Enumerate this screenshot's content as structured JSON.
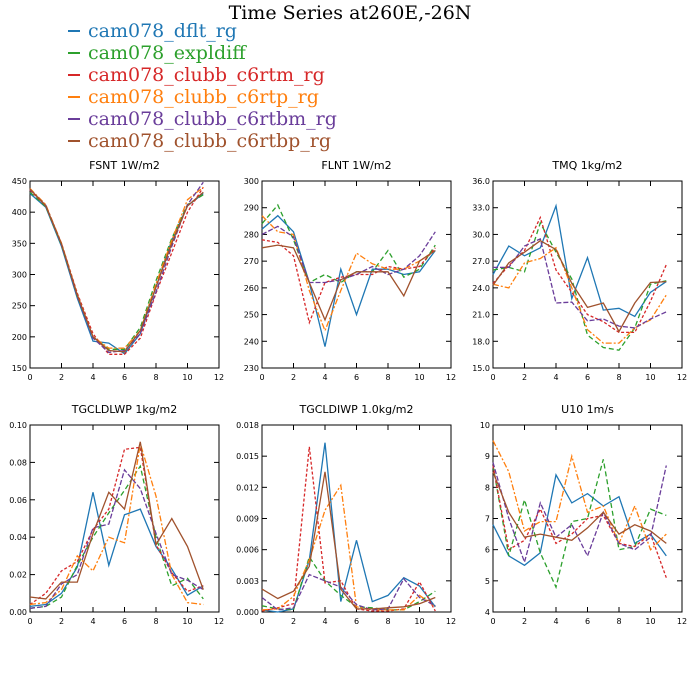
{
  "page": {
    "title": "Time Series at260E,-26N"
  },
  "legend": [
    {
      "label": "cam078_dflt_rg",
      "color": "#1f77b4"
    },
    {
      "label": "cam078_expldiff",
      "color": "#2ca02c"
    },
    {
      "label": "cam078_clubb_c6rtm_rg",
      "color": "#d62728"
    },
    {
      "label": "cam078_clubb_c6rtp_rg",
      "color": "#ff7f0e"
    },
    {
      "label": "cam078_clubb_c6rtbm_rg",
      "color": "#6a3d9a"
    },
    {
      "label": "cam078_clubb_c6rtbp_rg",
      "color": "#a0522d"
    }
  ],
  "chart_data": [
    {
      "type": "line",
      "title": "FSNT   1W/m2",
      "xlim": [
        0,
        12
      ],
      "ylim": [
        150,
        450
      ],
      "xticks": [
        "0",
        "2",
        "4",
        "6",
        "8",
        "10",
        "12"
      ],
      "yticks": [
        "150",
        "200",
        "250",
        "300",
        "350",
        "400",
        "450"
      ],
      "x": [
        0,
        1,
        2,
        3,
        4,
        5,
        6,
        7,
        8,
        9,
        10,
        11
      ],
      "series": [
        {
          "values": [
            430,
            408,
            345,
            262,
            193,
            190,
            173,
            205,
            280,
            355,
            410,
            430
          ]
        },
        {
          "values": [
            432,
            409,
            347,
            265,
            200,
            180,
            180,
            215,
            290,
            358,
            412,
            428
          ]
        },
        {
          "values": [
            435,
            410,
            350,
            270,
            205,
            172,
            172,
            198,
            270,
            335,
            400,
            440
          ]
        },
        {
          "values": [
            438,
            412,
            350,
            268,
            200,
            182,
            182,
            210,
            285,
            355,
            420,
            440
          ]
        },
        {
          "values": [
            436,
            411,
            348,
            265,
            198,
            175,
            178,
            205,
            272,
            345,
            412,
            448
          ]
        },
        {
          "values": [
            437,
            410,
            349,
            267,
            200,
            178,
            176,
            210,
            280,
            350,
            410,
            432
          ]
        }
      ]
    },
    {
      "type": "line",
      "title": "FLNT   1W/m2",
      "xlim": [
        0,
        12
      ],
      "ylim": [
        230,
        300
      ],
      "xticks": [
        "0",
        "2",
        "4",
        "6",
        "8",
        "10",
        "12"
      ],
      "yticks": [
        "230",
        "240",
        "250",
        "260",
        "270",
        "280",
        "290",
        "300"
      ],
      "x": [
        0,
        1,
        2,
        3,
        4,
        5,
        6,
        7,
        8,
        9,
        10,
        11
      ],
      "series": [
        {
          "values": [
            282,
            287,
            281,
            262,
            238,
            267,
            250,
            267,
            267,
            265,
            266,
            274
          ]
        },
        {
          "values": [
            284,
            291,
            278,
            262,
            265,
            262,
            266,
            266,
            274,
            264,
            267,
            276
          ]
        },
        {
          "values": [
            278,
            277,
            272,
            247,
            262,
            264,
            265,
            265,
            268,
            267,
            268,
            275
          ]
        },
        {
          "values": [
            287,
            281,
            280,
            259,
            244,
            259,
            273,
            269,
            267,
            267,
            270,
            274
          ]
        },
        {
          "values": [
            280,
            283,
            279,
            262,
            262,
            263,
            265,
            268,
            265,
            267,
            272,
            281
          ]
        },
        {
          "values": [
            275,
            276,
            275,
            262,
            248,
            263,
            266,
            266,
            266,
            257,
            270,
            274
          ]
        }
      ]
    },
    {
      "type": "line",
      "title": "TMQ   1kg/m2",
      "xlim": [
        0,
        12
      ],
      "ylim": [
        15.0,
        36.0
      ],
      "xticks": [
        "0",
        "2",
        "4",
        "6",
        "8",
        "10",
        "12"
      ],
      "yticks": [
        "15.0",
        "18.0",
        "21.0",
        "24.0",
        "27.0",
        "30.0",
        "33.0",
        "36.0"
      ],
      "x": [
        0,
        1,
        2,
        3,
        4,
        5,
        6,
        7,
        8,
        9,
        10,
        11
      ],
      "series": [
        {
          "values": [
            25.5,
            28.7,
            27.6,
            28.5,
            33.2,
            22.8,
            27.4,
            21.5,
            21.7,
            20.8,
            23.5,
            24.7
          ]
        },
        {
          "values": [
            26.0,
            26.3,
            25.8,
            31.3,
            28.0,
            25.0,
            18.7,
            17.3,
            17.0,
            19.5,
            24.4,
            24.8
          ]
        },
        {
          "values": [
            24.5,
            26.5,
            28.2,
            31.9,
            26.0,
            23.5,
            21.0,
            20.2,
            19.0,
            19.0,
            22.5,
            26.6
          ]
        },
        {
          "values": [
            24.4,
            24.0,
            26.8,
            27.3,
            28.5,
            24.0,
            19.3,
            17.8,
            17.8,
            19.5,
            20.4,
            23.2
          ]
        },
        {
          "values": [
            26.3,
            26.3,
            28.7,
            29.5,
            22.3,
            22.4,
            20.3,
            20.5,
            19.7,
            19.5,
            20.5,
            21.3
          ]
        },
        {
          "values": [
            24.3,
            26.8,
            28.0,
            29.3,
            28.3,
            24.5,
            21.8,
            22.3,
            19.1,
            22.3,
            24.6,
            24.7
          ]
        }
      ]
    },
    {
      "type": "line",
      "title": "TGCLDLWP   1kg/m2",
      "xlim": [
        0,
        12
      ],
      "ylim": [
        0.0,
        0.1
      ],
      "xticks": [
        "0",
        "2",
        "4",
        "6",
        "8",
        "10",
        "12"
      ],
      "yticks": [
        "0.00",
        "0.02",
        "0.04",
        "0.06",
        "0.08",
        "0.10"
      ],
      "x": [
        0,
        1,
        2,
        3,
        4,
        5,
        6,
        7,
        8,
        9,
        10,
        11
      ],
      "series": [
        {
          "values": [
            0.003,
            0.004,
            0.01,
            0.024,
            0.064,
            0.025,
            0.052,
            0.055,
            0.035,
            0.023,
            0.009,
            0.014
          ]
        },
        {
          "values": [
            0.002,
            0.003,
            0.008,
            0.025,
            0.04,
            0.053,
            0.065,
            0.078,
            0.04,
            0.014,
            0.018,
            0.007
          ]
        },
        {
          "values": [
            0.004,
            0.01,
            0.022,
            0.027,
            0.044,
            0.055,
            0.087,
            0.088,
            0.036,
            0.021,
            0.011,
            0.014
          ]
        },
        {
          "values": [
            0.004,
            0.005,
            0.012,
            0.03,
            0.022,
            0.04,
            0.037,
            0.09,
            0.062,
            0.02,
            0.005,
            0.004
          ]
        },
        {
          "values": [
            0.002,
            0.003,
            0.015,
            0.02,
            0.045,
            0.047,
            0.076,
            0.066,
            0.042,
            0.02,
            0.017,
            0.012
          ]
        },
        {
          "values": [
            0.008,
            0.007,
            0.016,
            0.016,
            0.042,
            0.064,
            0.055,
            0.091,
            0.036,
            0.05,
            0.035,
            0.012
          ]
        }
      ]
    },
    {
      "type": "line",
      "title": "TGCLDIWP   1.0kg/m2",
      "xlim": [
        0,
        12
      ],
      "ylim": [
        0.0,
        0.018
      ],
      "xticks": [
        "0",
        "2",
        "4",
        "6",
        "8",
        "10",
        "12"
      ],
      "yticks": [
        "0.000",
        "0.003",
        "0.006",
        "0.009",
        "0.012",
        "0.015",
        "0.018"
      ],
      "x": [
        0,
        1,
        2,
        3,
        4,
        5,
        6,
        7,
        8,
        9,
        10,
        11
      ],
      "series": [
        {
          "values": [
            0.0002,
            0.0,
            0.0003,
            0.005,
            0.0163,
            0.001,
            0.0069,
            0.001,
            0.0016,
            0.0033,
            0.0025,
            0.0005
          ]
        },
        {
          "values": [
            0.0006,
            0.0003,
            0.0002,
            0.0053,
            0.003,
            0.0016,
            0.0005,
            0.0004,
            0.0002,
            0.0002,
            0.001,
            0.002
          ]
        },
        {
          "values": [
            0.0001,
            0.0004,
            0.0008,
            0.0159,
            0.0028,
            0.003,
            0.0003,
            0.0001,
            0.0001,
            0.0003,
            0.0029,
            0.0001
          ]
        },
        {
          "values": [
            0.0002,
            0.0003,
            0.0015,
            0.005,
            0.0098,
            0.0122,
            0.0005,
            0.0002,
            0.0002,
            0.0002,
            0.0016,
            0.0005
          ]
        },
        {
          "values": [
            0.0014,
            0.0002,
            0.0004,
            0.0036,
            0.003,
            0.0024,
            0.0007,
            0.0002,
            0.0003,
            0.0032,
            0.0014,
            0.0006
          ]
        },
        {
          "values": [
            0.0022,
            0.0013,
            0.002,
            0.0044,
            0.0135,
            0.0022,
            0.0003,
            0.0003,
            0.0004,
            0.0005,
            0.0008,
            0.0014
          ]
        }
      ]
    },
    {
      "type": "line",
      "title": "U10   1m/s",
      "xlim": [
        0,
        12
      ],
      "ylim": [
        4,
        10
      ],
      "xticks": [
        "0",
        "2",
        "4",
        "6",
        "8",
        "10",
        "12"
      ],
      "yticks": [
        "4",
        "5",
        "6",
        "7",
        "8",
        "9",
        "10"
      ],
      "x": [
        0,
        1,
        2,
        3,
        4,
        5,
        6,
        7,
        8,
        9,
        10,
        11
      ],
      "series": [
        {
          "values": [
            6.8,
            5.8,
            5.5,
            5.9,
            8.4,
            7.5,
            7.8,
            7.4,
            7.7,
            6.2,
            6.5,
            5.8
          ]
        },
        {
          "values": [
            8.7,
            5.8,
            7.6,
            5.9,
            4.8,
            6.9,
            7.0,
            8.9,
            6.0,
            6.1,
            7.3,
            7.1
          ]
        },
        {
          "values": [
            8.7,
            6.0,
            6.3,
            7.3,
            6.2,
            6.5,
            7.0,
            7.1,
            6.2,
            6.1,
            6.5,
            5.1
          ]
        },
        {
          "values": [
            9.5,
            8.5,
            6.6,
            6.9,
            6.9,
            9.0,
            7.2,
            7.4,
            6.2,
            7.4,
            6.0,
            6.5
          ]
        },
        {
          "values": [
            8.8,
            7.0,
            5.6,
            7.5,
            6.4,
            6.8,
            5.8,
            7.2,
            6.2,
            6.0,
            6.4,
            8.7
          ]
        },
        {
          "values": [
            8.5,
            7.2,
            6.4,
            6.5,
            6.4,
            6.3,
            6.7,
            7.2,
            6.5,
            6.8,
            6.6,
            6.2
          ]
        }
      ]
    }
  ]
}
